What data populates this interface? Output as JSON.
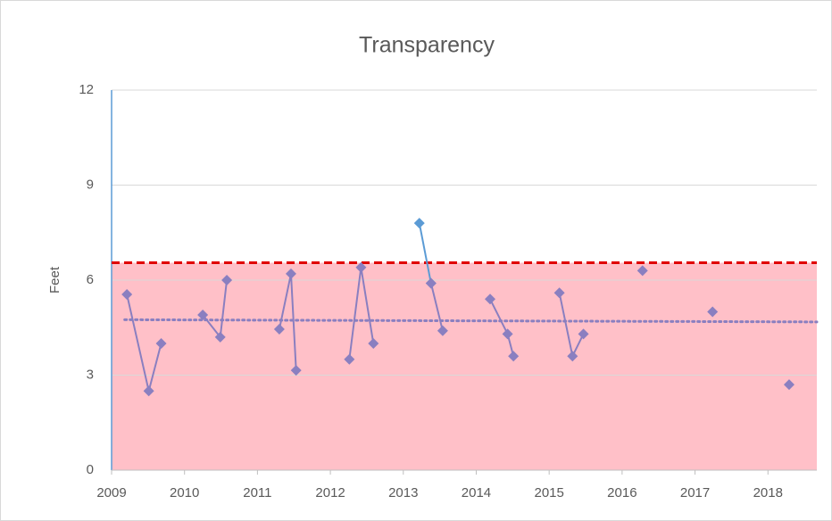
{
  "chart_data": {
    "type": "line",
    "title": "Transparency",
    "y_label": "Feet",
    "xlim": [
      2009,
      2018.67
    ],
    "xticks": [
      2009,
      2010,
      2011,
      2012,
      2013,
      2014,
      2015,
      2016,
      2017,
      2018
    ],
    "ylim": [
      0,
      12
    ],
    "yticks": [
      0,
      3,
      6,
      9,
      12
    ],
    "grid": true,
    "threshold": {
      "value": 6.55,
      "color": "#e00000",
      "fill": "#ffc0c8"
    },
    "trendline": {
      "x": [
        2009.18,
        2018.67
      ],
      "values": [
        4.75,
        4.68
      ],
      "color": "#8a7fc0"
    },
    "series": [
      {
        "color": "#8a7fc0",
        "x": [
          2009.21,
          2009.51,
          2009.68
        ],
        "values": [
          5.55,
          2.5,
          4.0
        ]
      },
      {
        "color": "#8a7fc0",
        "x": [
          2010.25,
          2010.49,
          2010.58
        ],
        "values": [
          4.9,
          4.2,
          6.0
        ]
      },
      {
        "color": "#8a7fc0",
        "x": [
          2011.3,
          2011.46,
          2011.53
        ],
        "values": [
          4.45,
          6.2,
          3.15
        ]
      },
      {
        "color": "#8a7fc0",
        "x": [
          2012.26,
          2012.42,
          2012.59
        ],
        "values": [
          3.5,
          6.4,
          4.0
        ]
      },
      {
        "color": "#5b9bd5",
        "x": [
          2013.22,
          2013.38
        ],
        "values": [
          7.8,
          5.9
        ]
      },
      {
        "color": "#8a7fc0",
        "x": [
          2013.38,
          2013.54
        ],
        "values": [
          5.9,
          4.4
        ]
      },
      {
        "color": "#8a7fc0",
        "x": [
          2014.19,
          2014.43,
          2014.51
        ],
        "values": [
          5.4,
          4.3,
          3.6
        ]
      },
      {
        "color": "#8a7fc0",
        "x": [
          2015.14,
          2015.32,
          2015.47
        ],
        "values": [
          5.6,
          3.6,
          4.3
        ]
      },
      {
        "color": "#8a7fc0",
        "x": [
          2016.28
        ],
        "values": [
          6.3
        ]
      },
      {
        "color": "#8a7fc0",
        "x": [
          2017.24
        ],
        "values": [
          5.0
        ]
      },
      {
        "color": "#8a7fc0",
        "x": [
          2018.29
        ],
        "values": [
          2.7
        ]
      }
    ]
  }
}
